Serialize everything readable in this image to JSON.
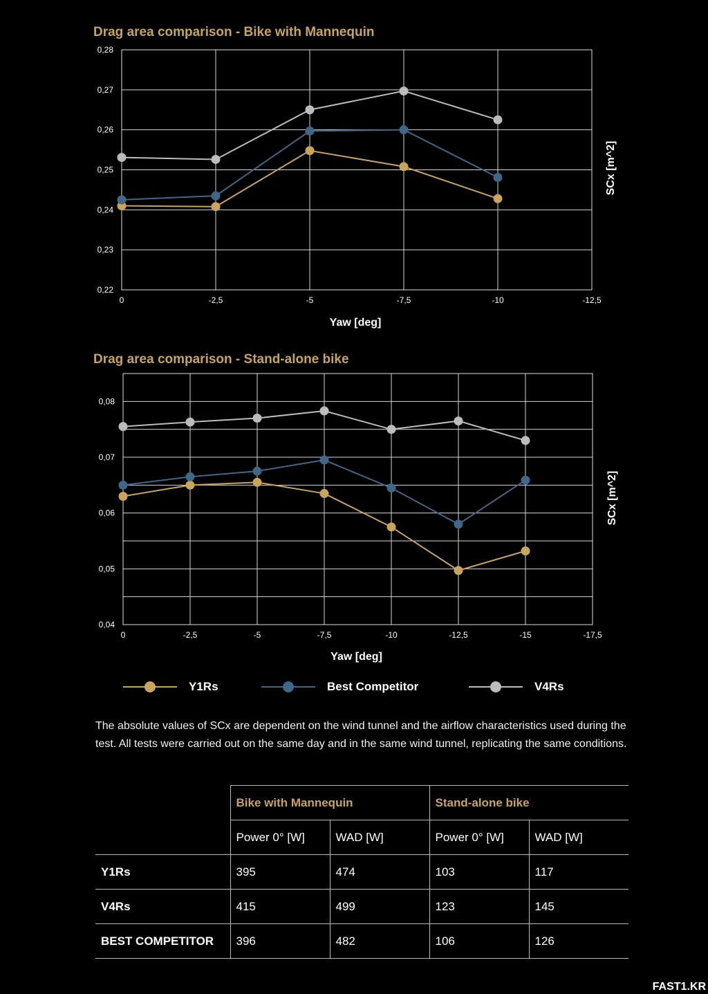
{
  "chart_data": [
    {
      "type": "line",
      "title": "Drag area comparison - Bike with Mannequin",
      "xlabel": "Yaw [deg]",
      "ylabel": "SCx [m^2]",
      "x": [
        0,
        -2.5,
        -5,
        -7.5,
        -10
      ],
      "xticks": [
        0,
        -2.5,
        -5,
        -7.5,
        -10,
        -12.5
      ],
      "xtick_labels": [
        "0",
        "-2,5",
        "-5",
        "-7,5",
        "-10",
        "-12,5"
      ],
      "xlim": [
        0,
        -12.5
      ],
      "ylim": [
        0.22,
        0.28
      ],
      "yticks": [
        0.22,
        0.23,
        0.24,
        0.25,
        0.26,
        0.27,
        0.28
      ],
      "ytick_labels": [
        "0,22",
        "0,23",
        "0,24",
        "0,25",
        "0,26",
        "0,27",
        "0,28"
      ],
      "grid": true,
      "series": [
        {
          "name": "Y1Rs",
          "color": "#c9a55a",
          "values": [
            0.241,
            0.2408,
            0.2548,
            0.2508,
            0.2428
          ]
        },
        {
          "name": "Best Competitor",
          "color": "#3f6888",
          "values": [
            0.2425,
            0.2435,
            0.2597,
            0.26,
            0.2481
          ]
        },
        {
          "name": "V4Rs",
          "color": "#bcbcbc",
          "values": [
            0.2531,
            0.2526,
            0.265,
            0.2697,
            0.2625
          ]
        }
      ]
    },
    {
      "type": "line",
      "title": "Drag area comparison - Stand-alone bike",
      "xlabel": "Yaw [deg]",
      "ylabel": "SCx [m^2]",
      "x": [
        0,
        -2.5,
        -5,
        -7.5,
        -10,
        -12.5,
        -15
      ],
      "xticks": [
        0,
        -2.5,
        -5,
        -7.5,
        -10,
        -12.5,
        -15,
        -17.5
      ],
      "xtick_labels": [
        "0",
        "-2,5",
        "-5",
        "-7,5",
        "-10",
        "-12,5",
        "-15",
        "-17,5"
      ],
      "xlim": [
        0,
        -17.5
      ],
      "ylim": [
        0.04,
        0.085
      ],
      "yticks": [
        0.04,
        0.05,
        0.06,
        0.07,
        0.08
      ],
      "ytick_labels": [
        "0,04",
        "0,05",
        "0,06",
        "0,07",
        "0,08"
      ],
      "grid": true,
      "series": [
        {
          "name": "Y1Rs",
          "color": "#c9a55a",
          "values": [
            0.063,
            0.065,
            0.0655,
            0.0635,
            0.0575,
            0.0497,
            0.0532
          ]
        },
        {
          "name": "Best Competitor",
          "color": "#3f6888",
          "values": [
            0.065,
            0.0665,
            0.0675,
            0.0695,
            0.0645,
            0.058,
            0.0659
          ]
        },
        {
          "name": "V4Rs",
          "color": "#bcbcbc",
          "values": [
            0.0755,
            0.0763,
            0.077,
            0.0783,
            0.075,
            0.0765,
            0.073
          ]
        }
      ]
    }
  ],
  "legend": [
    {
      "name": "Y1Rs",
      "color": "#c9a55a"
    },
    {
      "name": "Best Competitor",
      "color": "#3f6888"
    },
    {
      "name": "V4Rs",
      "color": "#bcbcbc"
    }
  ],
  "note": "The absolute values of SCx are dependent on the wind tunnel and the airflow characteristics used during the test. All tests were carried out on the same day and in the same wind tunnel, replicating the same conditions.",
  "table": {
    "groups": [
      "Bike with Mannequin",
      "Stand-alone bike"
    ],
    "columns": [
      "Power 0° [W]",
      "WAD [W]",
      "Power 0° [W]",
      "WAD [W]"
    ],
    "rows": [
      {
        "label": "Y1Rs",
        "values": [
          "395",
          "474",
          "103",
          "117"
        ]
      },
      {
        "label": "V4Rs",
        "values": [
          "415",
          "499",
          "123",
          "145"
        ]
      },
      {
        "label": "BEST COMPETITOR",
        "values": [
          "396",
          "482",
          "106",
          "126"
        ]
      }
    ]
  },
  "watermark": "FAST1.KR"
}
